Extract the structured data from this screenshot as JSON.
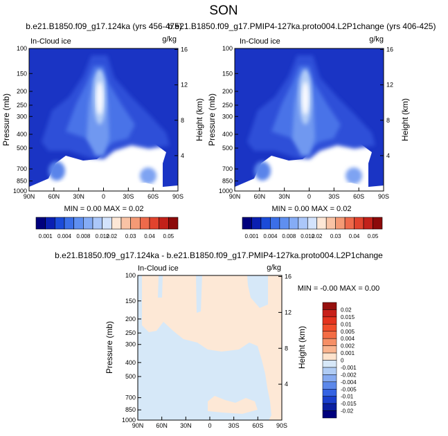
{
  "page_title": "SON",
  "chart_data": [
    {
      "type": "heatmap",
      "title": "b.e21.B1850.f09_g17.124ka (yrs 456-475)",
      "left_label": "In-Cloud ice",
      "right_label": "g/kg",
      "xlabel": "",
      "ylabel": "Pressure (mb)",
      "ylabel_right": "Height (km)",
      "x_ticks": [
        "90N",
        "60N",
        "30N",
        "0",
        "30S",
        "60S",
        "90S"
      ],
      "y_ticks": [
        "100",
        "150",
        "200",
        "250",
        "300",
        "400",
        "500",
        "700",
        "850",
        "1000"
      ],
      "y_right_ticks": [
        "16",
        "12",
        "8",
        "4"
      ],
      "stats": "MIN =   0.00  MAX =   0.02",
      "x": [
        90,
        -90
      ],
      "ylim": [
        1000,
        100
      ],
      "peak": {
        "lat": 8,
        "pressure_mb": 250,
        "value": 0.02
      }
    },
    {
      "type": "heatmap",
      "title": "b.e21.B1850.f09_g17.PMIP4-127ka.proto004.L2P1change (yrs 406-425)",
      "left_label": "In-Cloud ice",
      "right_label": "g/kg",
      "xlabel": "",
      "ylabel": "Pressure (mb)",
      "ylabel_right": "Height (km)",
      "x_ticks": [
        "90N",
        "60N",
        "30N",
        "0",
        "30S",
        "60S",
        "90S"
      ],
      "y_ticks": [
        "100",
        "150",
        "200",
        "250",
        "300",
        "400",
        "500",
        "700",
        "850",
        "1000"
      ],
      "y_right_ticks": [
        "16",
        "12",
        "8",
        "4"
      ],
      "stats": "MIN =   0.00  MAX =   0.02",
      "x": [
        90,
        -90
      ],
      "ylim": [
        1000,
        100
      ],
      "peak": {
        "lat": 8,
        "pressure_mb": 250,
        "value": 0.02
      }
    },
    {
      "type": "heatmap",
      "title": "b.e21.B1850.f09_g17.124ka - b.e21.B1850.f09_g17.PMIP4-127ka.proto004.L2P1change",
      "left_label": "In-Cloud ice",
      "right_label": "g/kg",
      "xlabel": "",
      "ylabel": "Pressure (mb)",
      "ylabel_right": "Height (km)",
      "x_ticks": [
        "90N",
        "60N",
        "30N",
        "0",
        "30S",
        "60S",
        "90S"
      ],
      "y_ticks": [
        "100",
        "150",
        "200",
        "250",
        "300",
        "400",
        "500",
        "700",
        "850",
        "1000"
      ],
      "y_right_ticks": [
        "16",
        "12",
        "8",
        "4"
      ],
      "stats": "MIN =  -0.00  MAX =   0.00",
      "x": [
        90,
        -90
      ],
      "ylim": [
        1000,
        100
      ]
    }
  ],
  "shared_colorbar": {
    "labels": [
      "0.001",
      "0.004",
      "0.008",
      "0.012",
      "0.02",
      "0.03",
      "0.04",
      "0.05"
    ],
    "colors": [
      "#00007d",
      "#0a1fb2",
      "#1b4bd9",
      "#3b6fe8",
      "#5f8ff0",
      "#85acf5",
      "#abc7f9",
      "#d3e3fc",
      "#fde7d6",
      "#f9c3a5",
      "#f49a75",
      "#ee6a4b",
      "#e1432d",
      "#c2211a",
      "#8c0a0a"
    ]
  },
  "diff_colorbar": {
    "labels": [
      "0.02",
      "0.015",
      "0.01",
      "0.005",
      "0.004",
      "0.002",
      "0.001",
      "0",
      "-0.001",
      "-0.002",
      "-0.004",
      "-0.005",
      "-0.01",
      "-0.015",
      "-0.02"
    ],
    "colors": [
      "#96100e",
      "#c8201a",
      "#e4331e",
      "#f04d2a",
      "#f36c44",
      "#f68f66",
      "#f9b48f",
      "#fde3cd",
      "#d7e8f8",
      "#b0ccf4",
      "#86aaf0",
      "#5c88ea",
      "#3563e3",
      "#1a3fcc",
      "#0a1fa0",
      "#00007d"
    ]
  },
  "diff_field_colors": {
    "positive": "#fde8d6",
    "negative": "#d6e8f8"
  }
}
